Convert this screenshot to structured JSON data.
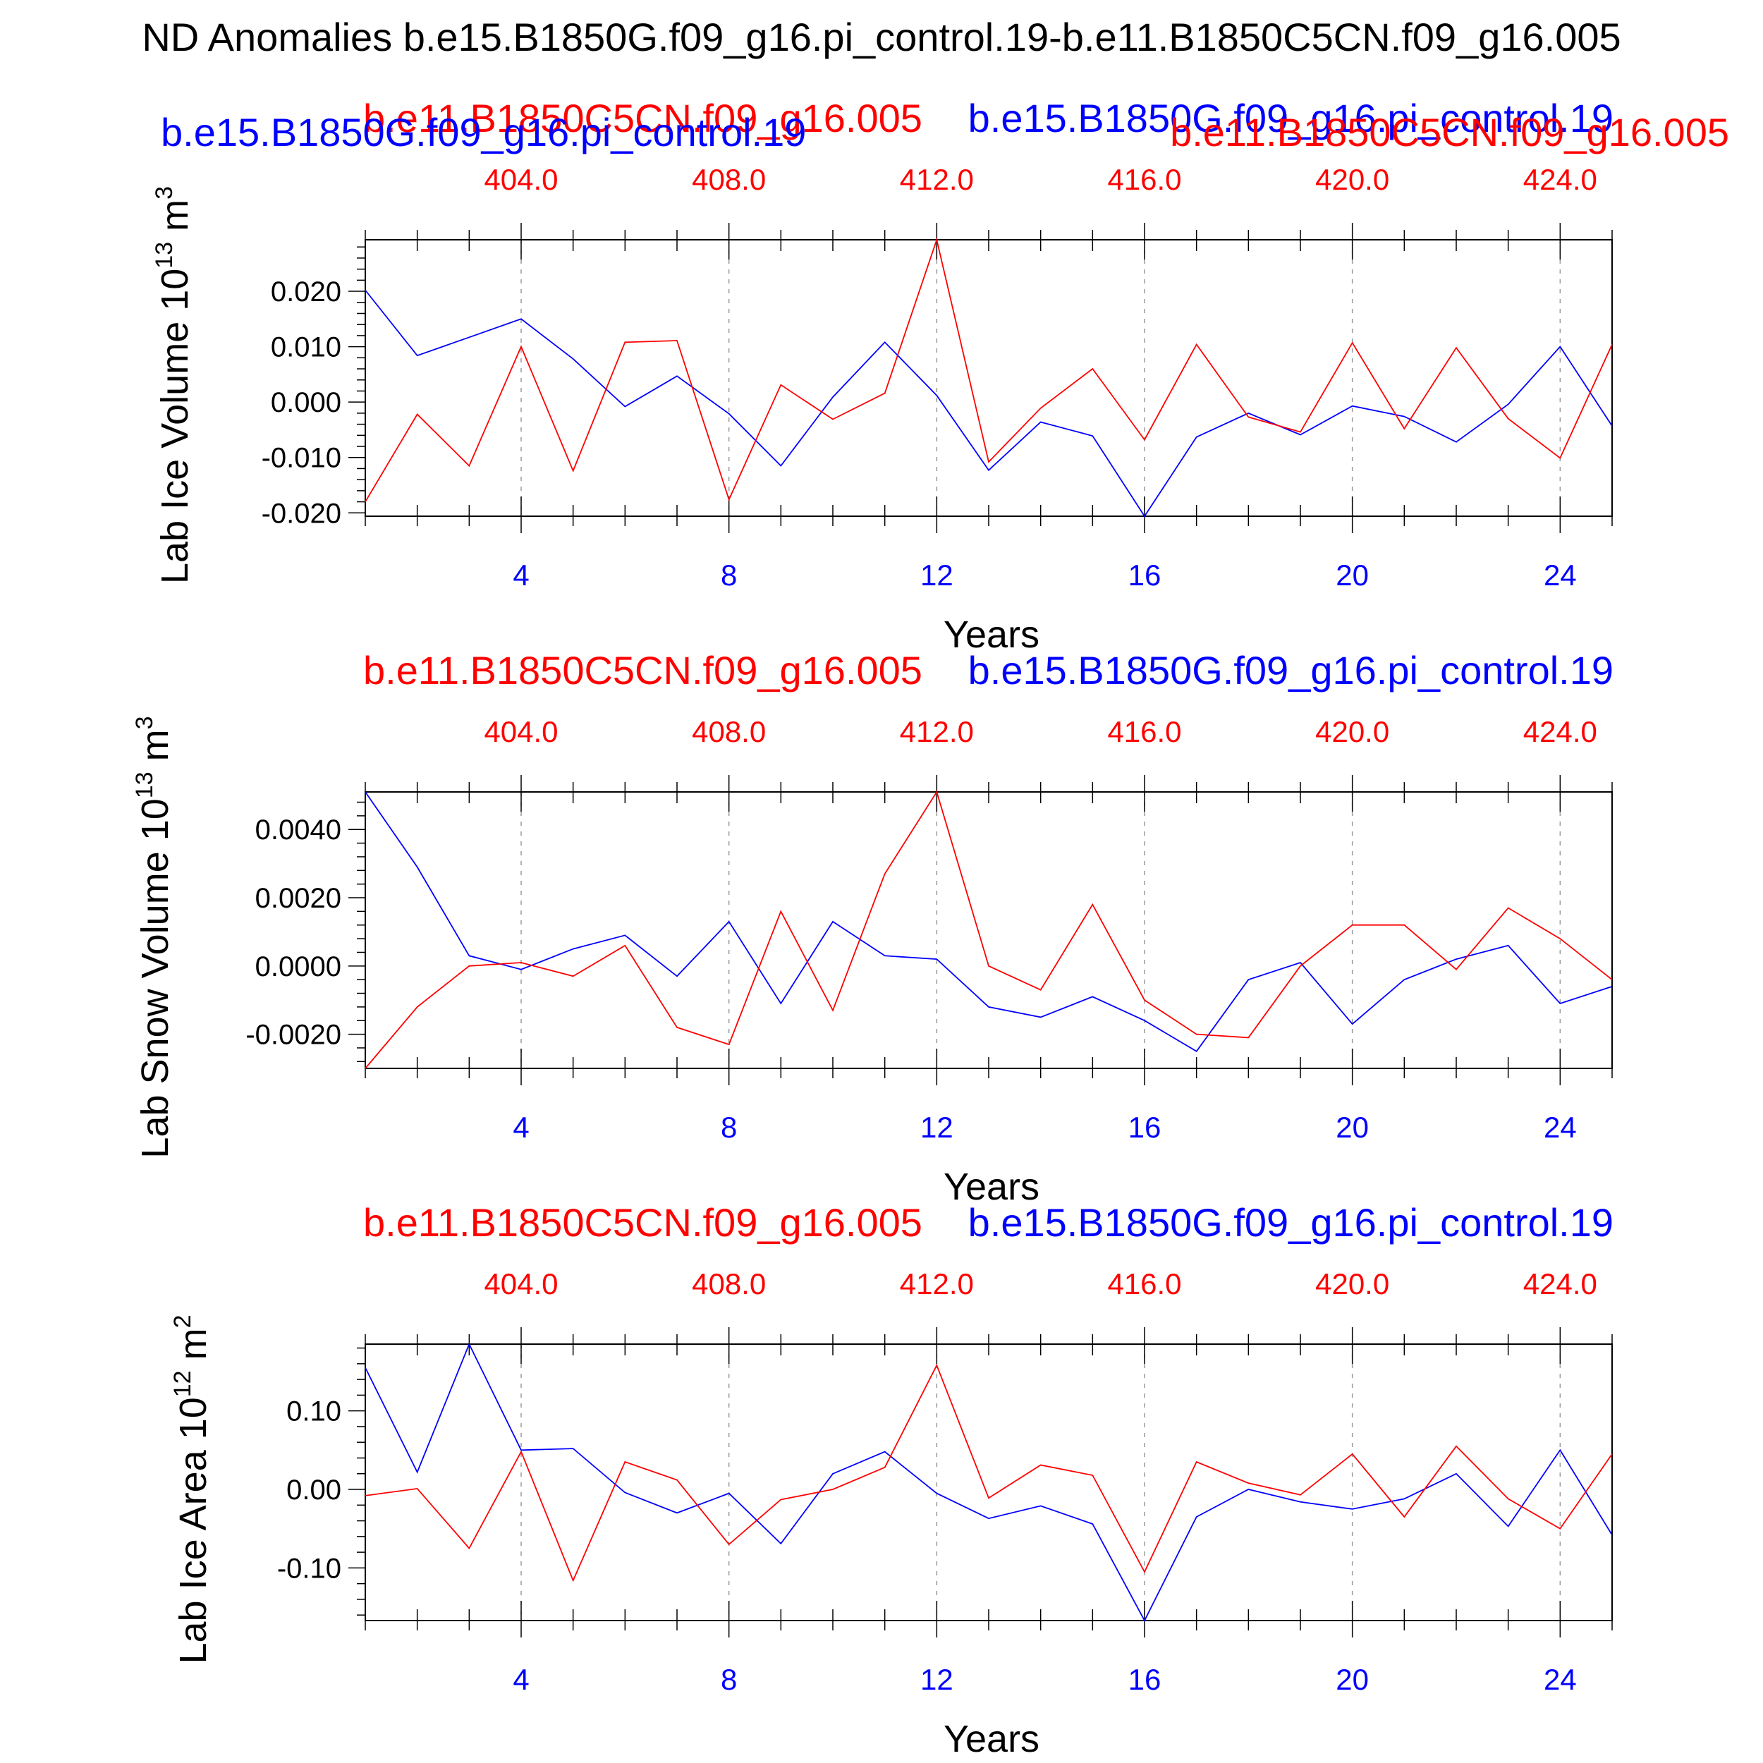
{
  "figure_title": "ND Anomalies b.e15.B1850G.f09_g16.pi_control.19-b.e11.B1850C5CN.f09_g16.005",
  "legend": {
    "blue_name": "b.e15.B1850G.f09_g16.pi_control.19",
    "red_name": "b.e11.B1850C5CN.f09_g16.005"
  },
  "colors": {
    "blue": "#0000ff",
    "red": "#ff0000",
    "axis": "#000000",
    "grid": "#9a9a9a"
  },
  "chart_data": [
    {
      "type": "line",
      "ylabel": "Lab Ice Volume 10",
      "ylabel_exp": "13",
      "ylabel_unit": " m",
      "ylabel_unit_exp": "3",
      "xlabel": "Years",
      "xlim": [
        1,
        25
      ],
      "ylim": [
        -0.0206,
        0.0293
      ],
      "yticks": [
        -0.02,
        -0.01,
        0.0,
        0.01,
        0.02
      ],
      "ytick_labels": [
        "-0.020",
        "-0.010",
        "0.000",
        "0.010",
        "0.020"
      ],
      "xticks_bottom": [
        "4",
        "8",
        "12",
        "16",
        "20",
        "24"
      ],
      "xticks_top": [
        "404.0",
        "408.0",
        "412.0",
        "416.0",
        "420.0",
        "424.0"
      ],
      "x": [
        1,
        2,
        3,
        4,
        5,
        6,
        7,
        8,
        9,
        10,
        11,
        12,
        13,
        14,
        15,
        16,
        17,
        18,
        19,
        20,
        21,
        22,
        23,
        24,
        25
      ],
      "series": [
        {
          "name": "b.e15.B1850G.f09_g16.pi_control.19",
          "color": "blue",
          "values": [
            0.0202,
            0.0084,
            0.0117,
            0.015,
            0.0078,
            -0.0008,
            0.0047,
            -0.0021,
            -0.0115,
            0.0009,
            0.0108,
            0.0012,
            -0.0123,
            -0.0036,
            -0.0061,
            -0.0206,
            -0.0063,
            -0.002,
            -0.0059,
            -0.0007,
            -0.0026,
            -0.0072,
            -0.0004,
            0.01,
            -0.0043
          ]
        },
        {
          "name": "b.e11.B1850C5CN.f09_g16.005",
          "color": "red",
          "values": [
            -0.018,
            -0.0022,
            -0.0115,
            0.01,
            -0.0124,
            0.0108,
            0.0111,
            -0.0176,
            0.0031,
            -0.0031,
            0.0016,
            0.0293,
            -0.0108,
            -0.0011,
            0.006,
            -0.0068,
            0.0104,
            -0.0027,
            -0.0054,
            0.0107,
            -0.0048,
            0.0098,
            -0.003,
            -0.0101,
            0.0104
          ]
        }
      ]
    },
    {
      "type": "line",
      "ylabel": "Lab Snow Volume 10",
      "ylabel_exp": "13",
      "ylabel_unit": " m",
      "ylabel_unit_exp": "3",
      "xlabel": "Years",
      "xlim": [
        1,
        25
      ],
      "ylim": [
        -0.003,
        0.0051
      ],
      "yticks": [
        -0.002,
        0.0,
        0.002,
        0.004
      ],
      "ytick_labels": [
        "-0.0020",
        "0.0000",
        "0.0020",
        "0.0040"
      ],
      "xticks_bottom": [
        "4",
        "8",
        "12",
        "16",
        "20",
        "24"
      ],
      "xticks_top": [
        "404.0",
        "408.0",
        "412.0",
        "416.0",
        "420.0",
        "424.0"
      ],
      "x": [
        1,
        2,
        3,
        4,
        5,
        6,
        7,
        8,
        9,
        10,
        11,
        12,
        13,
        14,
        15,
        16,
        17,
        18,
        19,
        20,
        21,
        22,
        23,
        24,
        25
      ],
      "series": [
        {
          "name": "b.e15.B1850G.f09_g16.pi_control.19",
          "color": "blue",
          "values": [
            0.0051,
            0.0029,
            0.0003,
            -0.0001,
            0.0005,
            0.0009,
            -0.0003,
            0.0013,
            -0.0011,
            0.0013,
            0.0003,
            0.0002,
            -0.0012,
            -0.0015,
            -0.0009,
            -0.0016,
            -0.0025,
            -0.0004,
            0.0001,
            -0.0017,
            -0.0004,
            0.0002,
            0.0006,
            -0.0011,
            -0.0006
          ]
        },
        {
          "name": "b.e11.B1850C5CN.f09_g16.005",
          "color": "red",
          "values": [
            -0.003,
            -0.0012,
            0.0,
            0.0001,
            -0.0003,
            0.0006,
            -0.0018,
            -0.0023,
            0.0016,
            -0.0013,
            0.0027,
            0.0051,
            0.0,
            -0.0007,
            0.0018,
            -0.001,
            -0.002,
            -0.0021,
            0.0,
            0.0012,
            0.0012,
            -0.0001,
            0.0017,
            0.0008,
            -0.0004
          ]
        }
      ]
    },
    {
      "type": "line",
      "ylabel": "Lab Ice Area 10",
      "ylabel_exp": "12",
      "ylabel_unit": " m",
      "ylabel_unit_exp": "2",
      "xlabel": "Years",
      "xlim": [
        1,
        25
      ],
      "ylim": [
        -0.167,
        0.185
      ],
      "yticks": [
        -0.1,
        0.0,
        0.1
      ],
      "ytick_labels": [
        "-0.10",
        "0.00",
        "0.10"
      ],
      "xticks_bottom": [
        "4",
        "8",
        "12",
        "16",
        "20",
        "24"
      ],
      "xticks_top": [
        "404.0",
        "408.0",
        "412.0",
        "416.0",
        "420.0",
        "424.0"
      ],
      "x": [
        1,
        2,
        3,
        4,
        5,
        6,
        7,
        8,
        9,
        10,
        11,
        12,
        13,
        14,
        15,
        16,
        17,
        18,
        19,
        20,
        21,
        22,
        23,
        24,
        25
      ],
      "series": [
        {
          "name": "b.e15.B1850G.f09_g16.pi_control.19",
          "color": "blue",
          "values": [
            0.155,
            0.022,
            0.185,
            0.05,
            0.052,
            -0.004,
            -0.03,
            -0.005,
            -0.069,
            0.02,
            0.048,
            -0.005,
            -0.037,
            -0.021,
            -0.044,
            -0.167,
            -0.035,
            0.0,
            -0.016,
            -0.025,
            -0.012,
            0.02,
            -0.047,
            0.05,
            -0.058
          ]
        },
        {
          "name": "b.e11.B1850C5CN.f09_g16.005",
          "color": "red",
          "values": [
            -0.008,
            0.001,
            -0.075,
            0.048,
            -0.116,
            0.035,
            0.012,
            -0.07,
            -0.013,
            0.0,
            0.028,
            0.158,
            -0.011,
            0.031,
            0.018,
            -0.105,
            0.035,
            0.008,
            -0.007,
            0.045,
            -0.035,
            0.055,
            -0.012,
            -0.05,
            0.045
          ]
        }
      ]
    }
  ]
}
